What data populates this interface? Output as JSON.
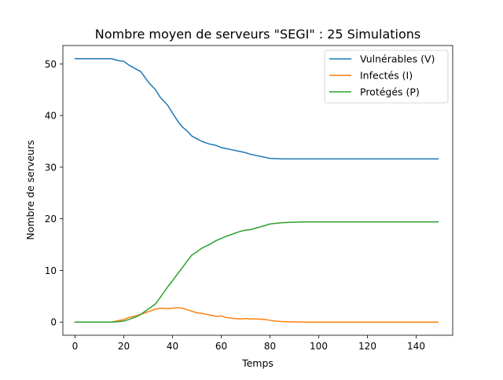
{
  "chart_data": {
    "type": "line",
    "title": "Nombre moyen de serveurs \"SEGI\" : 25 Simulations",
    "xlabel": "Temps",
    "ylabel": "Nombre de serveurs",
    "xlim": [
      -5,
      155
    ],
    "ylim": [
      -2.55,
      53.55
    ],
    "xticks": [
      0,
      20,
      40,
      60,
      80,
      100,
      120,
      140
    ],
    "yticks": [
      0,
      10,
      20,
      30,
      40,
      50
    ],
    "grid": false,
    "legend_position": "top-right",
    "x": [
      0,
      5,
      10,
      15,
      18,
      20,
      22,
      25,
      27,
      30,
      33,
      35,
      38,
      40,
      42,
      44,
      46,
      48,
      50,
      52,
      55,
      58,
      60,
      62,
      65,
      68,
      70,
      72,
      75,
      78,
      80,
      82,
      85,
      88,
      90,
      95,
      100,
      110,
      120,
      130,
      140,
      149
    ],
    "series": [
      {
        "name": "Vulnérables (V)",
        "color": "#1f77b4",
        "values": [
          51,
          51,
          51,
          51,
          50.6,
          50.5,
          49.8,
          49.0,
          48.5,
          46.5,
          45.0,
          43.5,
          42.0,
          40.5,
          39.0,
          37.8,
          37.0,
          36.0,
          35.5,
          35.0,
          34.5,
          34.2,
          33.8,
          33.6,
          33.3,
          33.0,
          32.8,
          32.5,
          32.2,
          31.9,
          31.7,
          31.65,
          31.6,
          31.6,
          31.6,
          31.6,
          31.6,
          31.6,
          31.6,
          31.6,
          31.6,
          31.6
        ]
      },
      {
        "name": "Infectés (I)",
        "color": "#ff7f0e",
        "values": [
          0,
          0,
          0,
          0,
          0.3,
          0.5,
          0.9,
          1.2,
          1.5,
          2.0,
          2.5,
          2.7,
          2.6,
          2.7,
          2.8,
          2.7,
          2.4,
          2.1,
          1.8,
          1.7,
          1.4,
          1.1,
          1.2,
          0.9,
          0.7,
          0.6,
          0.7,
          0.6,
          0.6,
          0.5,
          0.35,
          0.2,
          0.1,
          0.05,
          0.03,
          0,
          0,
          0,
          0,
          0,
          0,
          0
        ]
      },
      {
        "name": "Protégés (P)",
        "color": "#2ca02c",
        "values": [
          0,
          0,
          0,
          0,
          0.1,
          0.2,
          0.5,
          1.0,
          1.5,
          2.5,
          3.5,
          4.8,
          6.8,
          8.0,
          9.3,
          10.5,
          11.8,
          13.0,
          13.6,
          14.3,
          15.0,
          15.8,
          16.2,
          16.6,
          17.1,
          17.6,
          17.8,
          17.9,
          18.3,
          18.7,
          19.0,
          19.1,
          19.25,
          19.3,
          19.35,
          19.4,
          19.4,
          19.4,
          19.4,
          19.4,
          19.4,
          19.4
        ]
      }
    ]
  }
}
